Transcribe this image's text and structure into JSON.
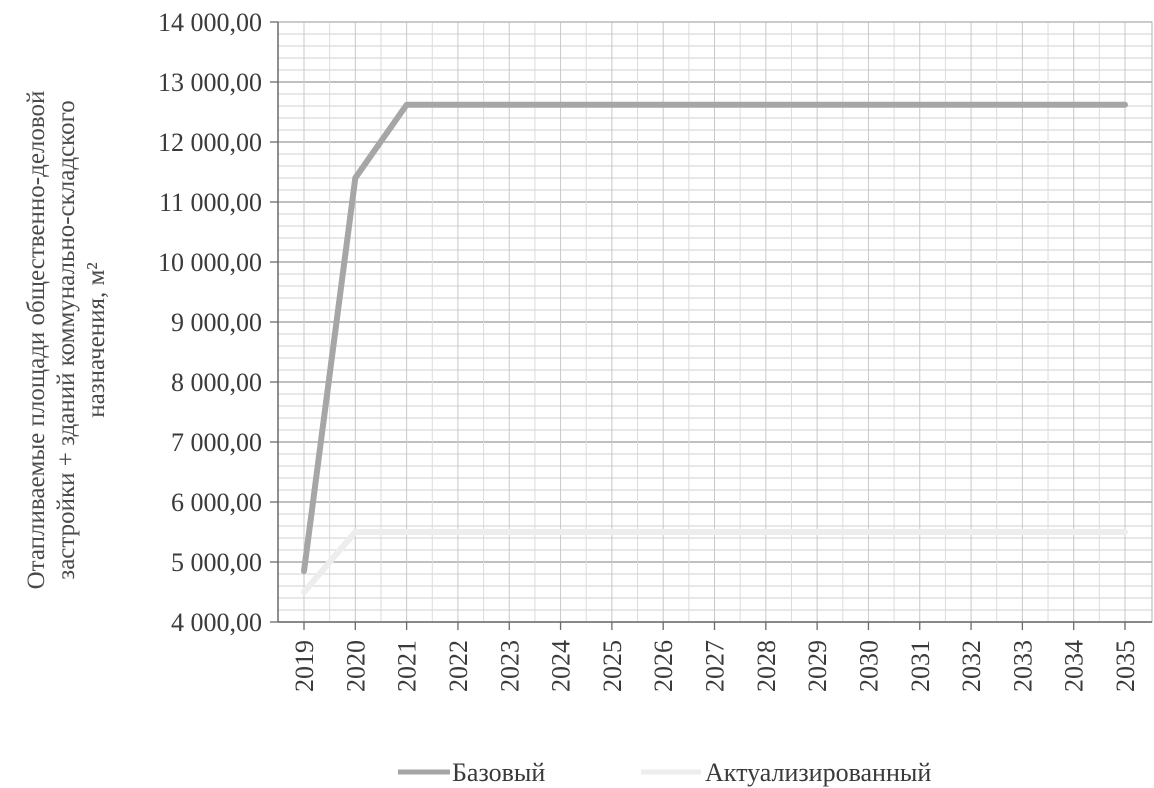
{
  "chart_data": {
    "type": "line",
    "title": "",
    "xlabel": "",
    "ylabel": "Отапливаемые площади общественно-деловой застройки + зданий коммунально-складского назначения, м²",
    "ylabel_lines": [
      "Отапливаемые площади общественно-деловой",
      "застройки + зданий коммунально-складского",
      "назначения, м²"
    ],
    "categories": [
      "2019",
      "2020",
      "2021",
      "2022",
      "2023",
      "2024",
      "2025",
      "2026",
      "2027",
      "2028",
      "2029",
      "2030",
      "2031",
      "2032",
      "2033",
      "2034",
      "2035"
    ],
    "y_ticks": [
      4000,
      5000,
      6000,
      7000,
      8000,
      9000,
      10000,
      11000,
      12000,
      13000,
      14000
    ],
    "y_tick_labels": [
      "4 000,00",
      "5 000,00",
      "6 000,00",
      "7 000,00",
      "8 000,00",
      "9 000,00",
      "10 000,00",
      "11 000,00",
      "12 000,00",
      "13 000,00",
      "14 000,00"
    ],
    "ylim": [
      4000,
      14000
    ],
    "grid": true,
    "legend_position": "bottom",
    "series": [
      {
        "name": "Базовый",
        "color": "#a6a6a6",
        "values": [
          4850,
          11400,
          12620,
          12620,
          12620,
          12620,
          12620,
          12620,
          12620,
          12620,
          12620,
          12620,
          12620,
          12620,
          12620,
          12620,
          12620
        ]
      },
      {
        "name": "Актуализированный",
        "color": "#ededed",
        "values": [
          4500,
          5500,
          5500,
          5500,
          5500,
          5500,
          5500,
          5500,
          5500,
          5500,
          5500,
          5500,
          5500,
          5500,
          5500,
          5500,
          5500
        ]
      }
    ]
  }
}
